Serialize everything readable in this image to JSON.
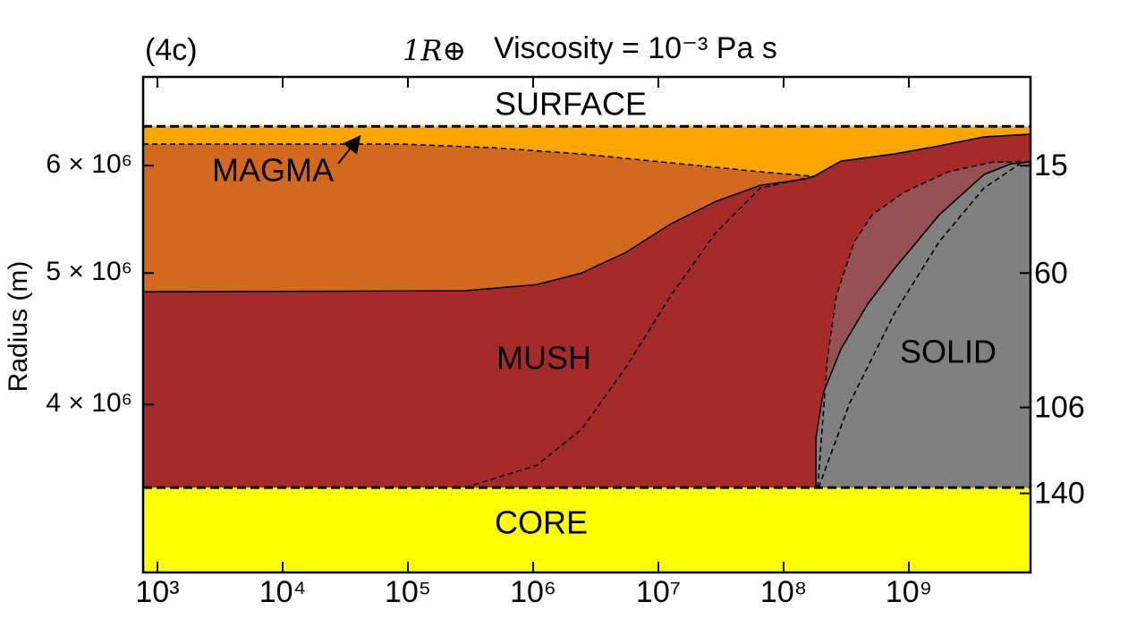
{
  "chart_data": {
    "type": "phase-regions",
    "panel_label": "(4c)",
    "planet": "1R⊕",
    "title": "Viscosity = 10⁻³ Pa s",
    "y_label": "Radius (m)",
    "x_scale": "log",
    "y_scale": "log",
    "xlim": [
      769,
      9360000000
    ],
    "ylim": [
      3008000,
      6975000
    ],
    "xticks": [
      {
        "value": 1000,
        "label": "10³"
      },
      {
        "value": 10000,
        "label": "10⁴"
      },
      {
        "value": 100000,
        "label": "10⁵"
      },
      {
        "value": 1000000,
        "label": "10⁶"
      },
      {
        "value": 10000000,
        "label": "10⁷"
      },
      {
        "value": 100000000,
        "label": "10⁸"
      },
      {
        "value": 1000000000,
        "label": "10⁹"
      }
    ],
    "yticks": [
      {
        "value": 4000000,
        "label": "4 × 10⁶"
      },
      {
        "value": 5000000,
        "label": "5 × 10⁶"
      },
      {
        "value": 6000000,
        "label": "6 × 10⁶"
      }
    ],
    "pressure_ticks": [
      {
        "radius": 6000000,
        "pressure": 15
      },
      {
        "radius": 5000000,
        "pressure": 60
      },
      {
        "radius": 3980000,
        "pressure": 106
      },
      {
        "radius": 3440000,
        "pressure": 140
      }
    ],
    "surface_radius": 6414000,
    "core_radius": 3474000,
    "magma_color": "#ffa500",
    "core_color": "#ffff00",
    "boundaries": [
      {
        "x": [
          769,
          7686,
          90600,
          469000,
          2430000,
          12600000,
          65200000,
          175000000,
          287000000,
          769000000,
          1750000000,
          3980000000,
          9360000000
        ],
        "y": [
          6223000,
          6223000,
          6223000,
          6186000,
          6120000,
          6028000,
          5937000,
          5892000,
          6046000,
          6120000,
          6205000,
          6300000,
          6328000
        ],
        "fill": "#d2691e",
        "line": "dashed"
      },
      {
        "x": [
          769,
          286000,
          1070000,
          2430000,
          5530000,
          12600000,
          28700000,
          65200000,
          148000000,
          175000000,
          287000000,
          769000000,
          1750000000,
          3980000000,
          9360000000
        ],
        "y": [
          4844000,
          4852000,
          4903000,
          5000000,
          5179000,
          5436000,
          5646000,
          5803000,
          5865000,
          5892000,
          6046000,
          6120000,
          6205000,
          6300000,
          6328000
        ],
        "fill": "#a52a2a",
        "line": "solid"
      },
      {
        "x": [
          286000,
          1070000,
          2430000,
          5530000,
          12600000,
          28700000,
          65200000,
          175000000
        ],
        "y": [
          3474000,
          3608000,
          3834000,
          4264000,
          4814000,
          5354000,
          5776000,
          5892000
        ],
        "line": "dashed"
      },
      {
        "x": [
          187000000,
          224000000,
          264000000,
          367000000,
          509000000,
          906000000,
          2060000000,
          4690000000,
          9360000000
        ],
        "y": [
          3474000,
          4329000,
          4814000,
          5274000,
          5519000,
          5733000,
          5937000,
          6037000,
          6037000
        ],
        "fill": "#965155",
        "line": "dashed"
      },
      {
        "x": [
          181000000,
          181000000,
          206000000,
          287000000,
          469000000,
          769000000,
          1750000000,
          3980000000,
          6520000000,
          9360000000
        ],
        "y": [
          3474000,
          3776000,
          4074000,
          4395000,
          4743000,
          5039000,
          5519000,
          5910000,
          6018000,
          6037000
        ],
        "fill": "#808080",
        "line": "solid"
      },
      {
        "x": [
          190000000,
          338000000,
          769000000,
          1750000000,
          3980000000,
          7690000000
        ],
        "y": [
          3474000,
          4013000,
          4671000,
          5274000,
          5776000,
          6018000
        ],
        "line": "dashed"
      }
    ],
    "region_labels": {
      "surface": "SURFACE",
      "magma": "MAGMA",
      "mush": "MUSH",
      "solid": "SOLID",
      "core": "CORE"
    }
  }
}
